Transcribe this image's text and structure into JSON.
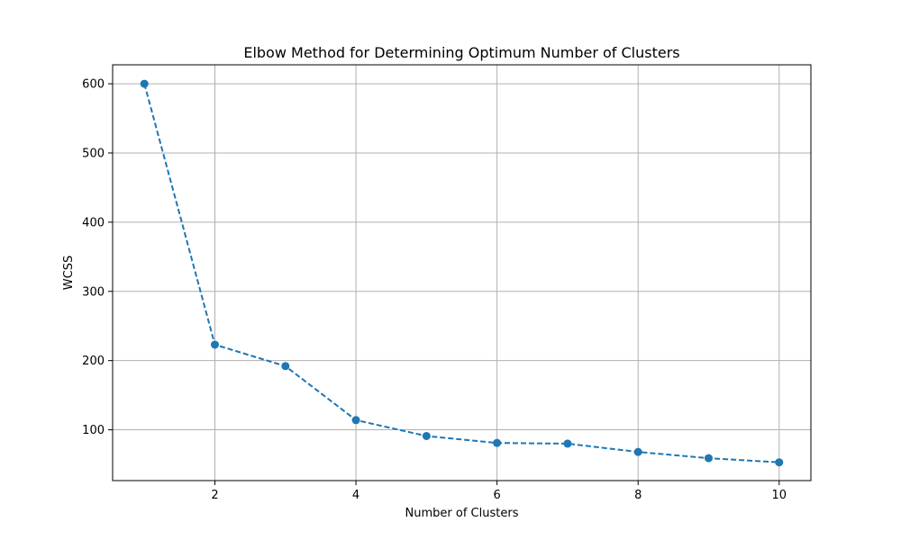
{
  "chart_data": {
    "type": "line",
    "title": "Elbow Method for Determining Optimum Number of Clusters",
    "xlabel": "Number of Clusters",
    "ylabel": "WCSS",
    "x": [
      1,
      2,
      3,
      4,
      5,
      6,
      7,
      8,
      9,
      10
    ],
    "series": [
      {
        "values": [
          600,
          223,
          192,
          114,
          91,
          81,
          80,
          68,
          59,
          53
        ],
        "color": "#1f77b4",
        "line_style": "dashed",
        "marker": "circle"
      }
    ],
    "xlim": [
      0.55,
      10.45
    ],
    "ylim": [
      26.6,
      627.4
    ],
    "xticks": [
      2,
      4,
      6,
      8,
      10
    ],
    "yticks": [
      100,
      200,
      300,
      400,
      500,
      600
    ],
    "grid": true
  }
}
